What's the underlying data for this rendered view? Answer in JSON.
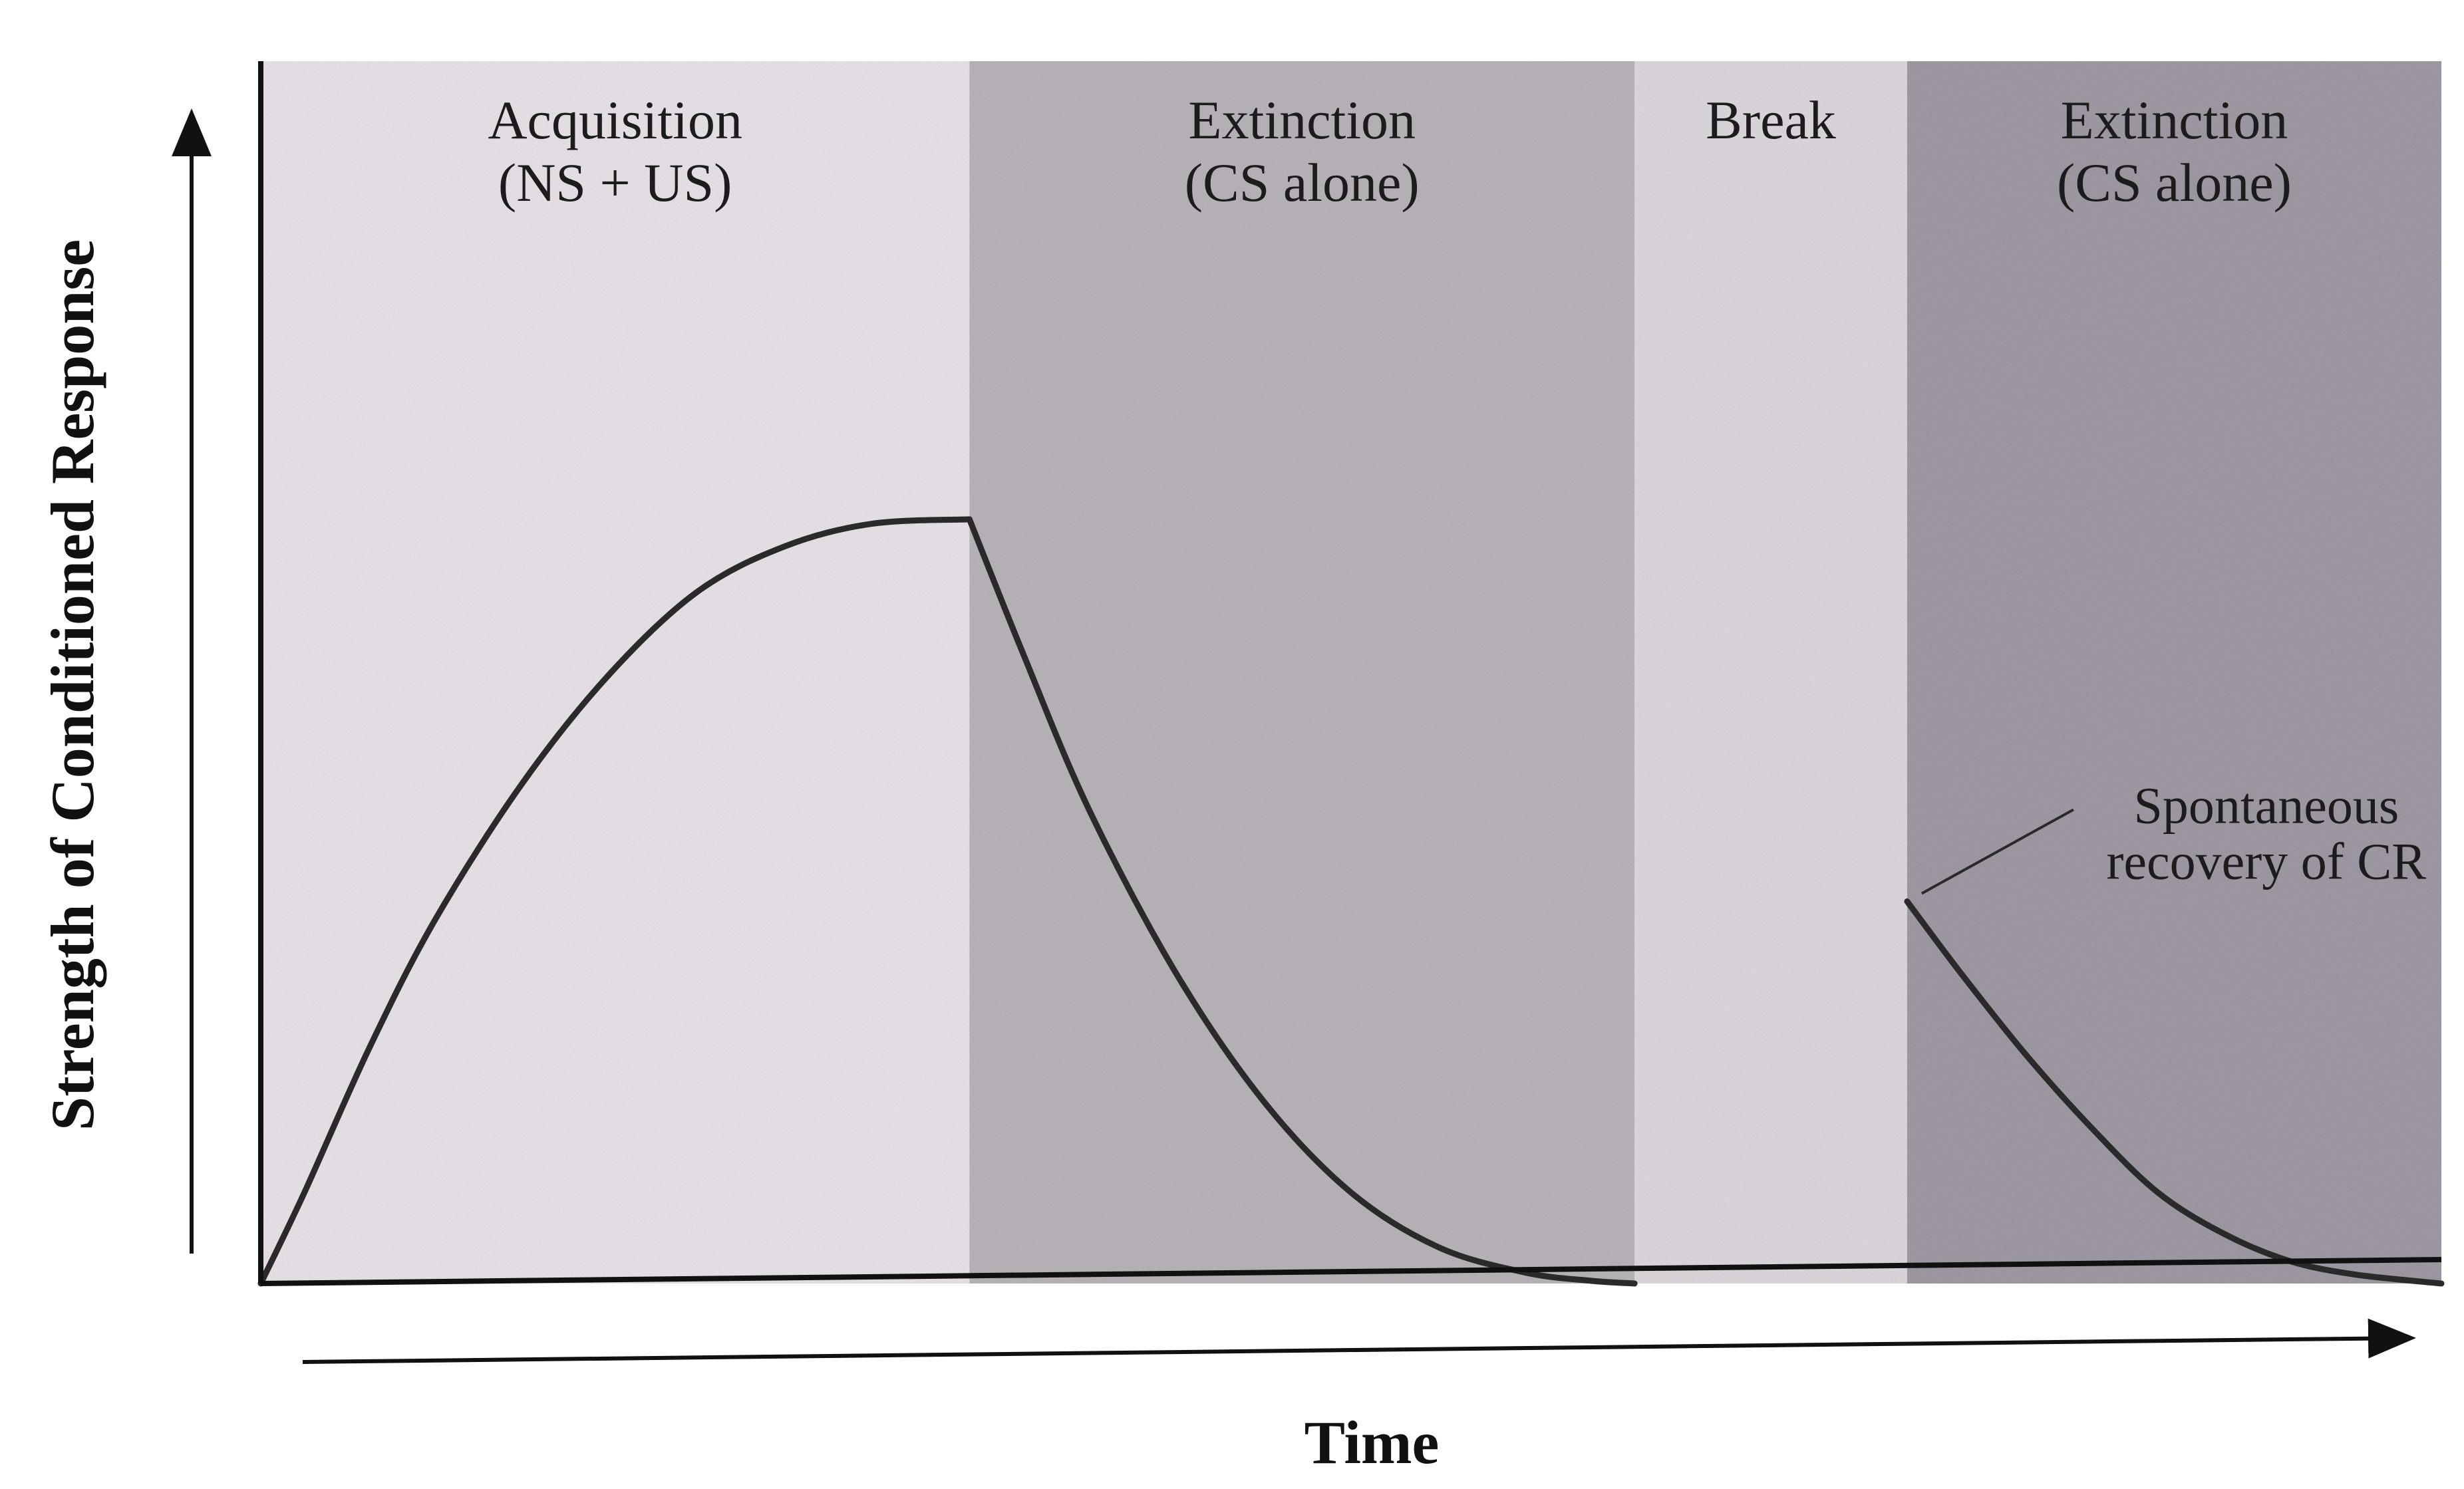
{
  "chart_data": {
    "type": "line",
    "title": "",
    "xlabel": "Time",
    "ylabel": "Strength of Conditioned Response",
    "xlim": [
      0,
      100
    ],
    "ylim": [
      0,
      100
    ],
    "grid": false,
    "phases": [
      {
        "label_line1": "Acquisition",
        "label_line2": "(NS + US)",
        "x_start": 0,
        "x_end": 32.5,
        "shade": "#e9e2e8"
      },
      {
        "label_line1": "Extinction",
        "label_line2": "(CS alone)",
        "x_start": 32.5,
        "x_end": 63.0,
        "shade": "#b9b4b9"
      },
      {
        "label_line1": "Break",
        "label_line2": "",
        "x_start": 63.0,
        "x_end": 75.5,
        "shade": "#ddd8dd"
      },
      {
        "label_line1": "Extinction",
        "label_line2": "(CS alone)",
        "x_start": 75.5,
        "x_end": 100,
        "shade": "#9f9aa4"
      }
    ],
    "series": [
      {
        "segment": "acquisition",
        "x": [
          0,
          2,
          5,
          8,
          12,
          16,
          20,
          24,
          28,
          32.5
        ],
        "y": [
          0,
          10,
          26,
          40,
          55,
          67,
          76,
          81,
          83.5,
          84
        ]
      },
      {
        "segment": "extinction",
        "x": [
          32.5,
          35,
          38,
          42,
          46,
          50,
          54,
          58,
          61,
          63
        ],
        "y": [
          84,
          69,
          52,
          34,
          20,
          10,
          4,
          1.2,
          0.3,
          0
        ]
      },
      {
        "segment": "extinction_after_break",
        "x": [
          75.5,
          78,
          81,
          84,
          87,
          90,
          93,
          96,
          100
        ],
        "y": [
          42,
          34,
          25,
          17,
          10,
          5.5,
          2.5,
          1,
          0
        ]
      }
    ],
    "annotations": [
      {
        "line1": "Spontaneous",
        "line2": "recovery of CR",
        "x": 75.5,
        "y": 42
      }
    ],
    "colors": {
      "curve": "#2a2a2a",
      "axis": "#111111",
      "text": "#1c1c1c"
    }
  }
}
